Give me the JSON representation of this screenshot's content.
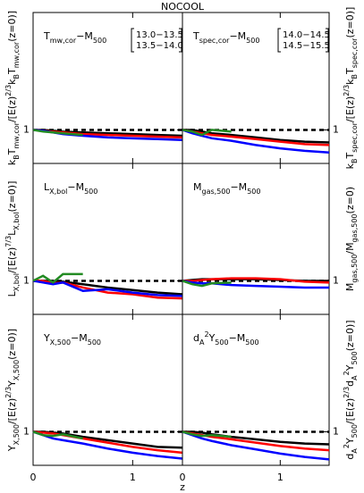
{
  "title": "NOCOOL",
  "xlabel": "z",
  "chart_data": [
    {
      "type": "line",
      "label": [
        {
          "text": "T"
        },
        {
          "text": "mw,cor",
          "shift": "sub"
        },
        {
          "text": "−M"
        },
        {
          "text": "500",
          "shift": "sub"
        }
      ],
      "ylabel": [
        {
          "text": "k"
        },
        {
          "text": "B",
          "shift": "sub"
        },
        {
          "text": "T"
        },
        {
          "text": "mw,cor",
          "shift": "sub"
        },
        {
          "text": "/[E(z)"
        },
        {
          "text": "2/3",
          "shift": "super"
        },
        {
          "text": "k"
        },
        {
          "text": "B",
          "shift": "sub"
        },
        {
          "text": "T"
        },
        {
          "text": "mw,cor",
          "shift": "sub"
        },
        {
          "text": "(z=0)]"
        }
      ],
      "x": [
        0,
        0.1,
        0.2,
        0.3,
        0.5,
        0.75,
        1,
        1.25,
        1.5
      ],
      "series": [
        {
          "name": "13.0−13.5",
          "color": "#000000",
          "values": [
            1,
            1,
            0.995,
            0.99,
            0.985,
            0.98,
            0.975,
            0.97,
            0.965
          ]
        },
        {
          "name": "13.5−14.0",
          "color": "#ff0000",
          "values": [
            1,
            0.995,
            0.99,
            0.985,
            0.975,
            0.97,
            0.965,
            0.96,
            0.955
          ]
        },
        {
          "color": "#0000ff",
          "values": [
            1,
            0.995,
            0.985,
            0.975,
            0.965,
            0.955,
            0.95,
            0.945,
            0.94
          ]
        },
        {
          "color": "#228b22",
          "values": [
            1,
            0.99,
            0.985,
            0.98,
            0.97,
            null,
            null,
            null,
            null
          ]
        }
      ],
      "xlim": [
        0,
        1.5
      ],
      "ylim": [
        0.8,
        1.7
      ],
      "xticks": [
        0,
        1
      ],
      "yticks": [
        1
      ],
      "hline": 1
    },
    {
      "type": "line",
      "label": [
        {
          "text": "T"
        },
        {
          "text": "spec,cor",
          "shift": "sub"
        },
        {
          "text": "−M"
        },
        {
          "text": "500",
          "shift": "sub"
        }
      ],
      "ylabel": [
        {
          "text": "k"
        },
        {
          "text": "B",
          "shift": "sub"
        },
        {
          "text": "T"
        },
        {
          "text": "spec,cor",
          "shift": "sub"
        },
        {
          "text": "/[E(z)"
        },
        {
          "text": "2/3",
          "shift": "super"
        },
        {
          "text": "k"
        },
        {
          "text": "B",
          "shift": "sub"
        },
        {
          "text": "T"
        },
        {
          "text": "spec,cor",
          "shift": "sub"
        },
        {
          "text": "(z=0)]"
        }
      ],
      "x": [
        0,
        0.1,
        0.2,
        0.3,
        0.5,
        0.75,
        1,
        1.25,
        1.5
      ],
      "series": [
        {
          "color": "#000000",
          "values": [
            1,
            1,
            0.99,
            0.98,
            0.97,
            0.955,
            0.94,
            0.93,
            0.925
          ]
        },
        {
          "color": "#ff0000",
          "values": [
            1,
            0.99,
            0.98,
            0.97,
            0.96,
            0.945,
            0.93,
            0.915,
            0.91
          ]
        },
        {
          "name": "14.0−14.5",
          "color": "#0000ff",
          "values": [
            1,
            0.98,
            0.965,
            0.95,
            0.935,
            0.91,
            0.89,
            0.875,
            0.865
          ]
        },
        {
          "name": "14.5−15.5",
          "color": "#228b22",
          "values": [
            1,
            0.99,
            0.97,
            1,
            0.99,
            null,
            null,
            null,
            null
          ]
        }
      ],
      "xlim": [
        0,
        1.5
      ],
      "ylim": [
        0.8,
        1.7
      ],
      "xticks": [
        0,
        1
      ],
      "yticks": [
        1
      ],
      "hline": 1
    },
    {
      "type": "line",
      "label": [
        {
          "text": "L"
        },
        {
          "text": "X,bol",
          "shift": "sub"
        },
        {
          "text": "−M"
        },
        {
          "text": "500",
          "shift": "sub"
        }
      ],
      "ylabel": [
        {
          "text": "L"
        },
        {
          "text": "X,bol",
          "shift": "sub"
        },
        {
          "text": "/[E(z)"
        },
        {
          "text": "7/3",
          "shift": "super"
        },
        {
          "text": "L"
        },
        {
          "text": "X,bol",
          "shift": "sub"
        },
        {
          "text": "(z=0)]"
        }
      ],
      "x": [
        0,
        0.1,
        0.2,
        0.3,
        0.5,
        0.75,
        1,
        1.25,
        1.5
      ],
      "series": [
        {
          "color": "#000000",
          "values": [
            1,
            1,
            1,
            0.995,
            0.98,
            0.96,
            0.945,
            0.93,
            0.92
          ]
        },
        {
          "color": "#ff0000",
          "values": [
            1,
            1,
            0.985,
            0.99,
            0.96,
            0.93,
            0.92,
            0.9,
            0.895
          ]
        },
        {
          "color": "#0000ff",
          "values": [
            1,
            0.99,
            0.98,
            0.99,
            0.94,
            0.95,
            0.93,
            0.915,
            0.91
          ]
        },
        {
          "color": "#228b22",
          "values": [
            1,
            1.03,
            0.99,
            1.04,
            1.04,
            null,
            null,
            null,
            null
          ]
        }
      ],
      "xlim": [
        0,
        1.5
      ],
      "ylim": [
        0.8,
        1.7
      ],
      "xticks": [
        0,
        1
      ],
      "yticks": [
        1
      ],
      "hline": 1
    },
    {
      "type": "line",
      "label": [
        {
          "text": "M"
        },
        {
          "text": "gas,500",
          "shift": "sub"
        },
        {
          "text": "−M"
        },
        {
          "text": "500",
          "shift": "sub"
        }
      ],
      "ylabel": [
        {
          "text": "M"
        },
        {
          "text": "gas,500",
          "shift": "sub"
        },
        {
          "text": "/M"
        },
        {
          "text": "gas,500",
          "shift": "sub"
        },
        {
          "text": "(z=0)"
        }
      ],
      "x": [
        0,
        0.1,
        0.2,
        0.3,
        0.5,
        0.75,
        1,
        1.25,
        1.5
      ],
      "series": [
        {
          "color": "#000000",
          "values": [
            1,
            1.005,
            1.01,
            1.01,
            1.01,
            1.01,
            1.005,
            1,
            1
          ]
        },
        {
          "color": "#ff0000",
          "values": [
            1,
            1,
            1.005,
            1.01,
            1.015,
            1.015,
            1.01,
            0.995,
            0.99
          ]
        },
        {
          "color": "#0000ff",
          "values": [
            1,
            0.99,
            0.985,
            0.985,
            0.975,
            0.97,
            0.965,
            0.96,
            0.96
          ]
        },
        {
          "color": "#228b22",
          "values": [
            1,
            0.98,
            0.97,
            0.985,
            0.99,
            null,
            null,
            null,
            null
          ]
        }
      ],
      "xlim": [
        0,
        1.5
      ],
      "ylim": [
        0.8,
        1.7
      ],
      "xticks": [
        0,
        1
      ],
      "yticks": [
        1
      ],
      "hline": 1
    },
    {
      "type": "line",
      "label": [
        {
          "text": "Y"
        },
        {
          "text": "X,500",
          "shift": "sub"
        },
        {
          "text": "−M"
        },
        {
          "text": "500",
          "shift": "sub"
        }
      ],
      "ylabel": [
        {
          "text": "Y"
        },
        {
          "text": "X,500",
          "shift": "sub"
        },
        {
          "text": "/[E(z)"
        },
        {
          "text": "2/3",
          "shift": "super"
        },
        {
          "text": "Y"
        },
        {
          "text": "X,500",
          "shift": "sub"
        },
        {
          "text": "(z=0)]"
        }
      ],
      "x": [
        0,
        0.1,
        0.2,
        0.3,
        0.5,
        0.75,
        1,
        1.25,
        1.5
      ],
      "series": [
        {
          "color": "#000000",
          "values": [
            1,
            1,
            0.995,
            0.99,
            0.97,
            0.95,
            0.93,
            0.91,
            0.905
          ]
        },
        {
          "color": "#ff0000",
          "values": [
            1,
            0.995,
            0.99,
            0.98,
            0.96,
            0.935,
            0.91,
            0.89,
            0.875
          ]
        },
        {
          "color": "#0000ff",
          "values": [
            1,
            0.98,
            0.96,
            0.95,
            0.93,
            0.9,
            0.875,
            0.855,
            0.84
          ]
        },
        {
          "color": "#228b22",
          "values": [
            1,
            0.98,
            0.975,
            0.985,
            0.96,
            null,
            null,
            null,
            null
          ]
        }
      ],
      "xlim": [
        0,
        1.5
      ],
      "ylim": [
        0.8,
        1.7
      ],
      "xticks": [
        0,
        1
      ],
      "yticks": [
        1
      ],
      "hline": 1
    },
    {
      "type": "line",
      "label": [
        {
          "text": "d"
        },
        {
          "text": "A",
          "shift": "sub"
        },
        {
          "text": "2",
          "shift": "super"
        },
        {
          "text": "Y"
        },
        {
          "text": "500",
          "shift": "sub"
        },
        {
          "text": "−M"
        },
        {
          "text": "500",
          "shift": "sub"
        }
      ],
      "ylabel": [
        {
          "text": "d"
        },
        {
          "text": "A",
          "shift": "sub"
        },
        {
          "text": "2",
          "shift": "super"
        },
        {
          "text": "Y"
        },
        {
          "text": "500",
          "shift": "sub"
        },
        {
          "text": "/[E(z)"
        },
        {
          "text": "2/3",
          "shift": "super"
        },
        {
          "text": "d"
        },
        {
          "text": "A",
          "shift": "sub"
        },
        {
          "text": "2",
          "shift": "super"
        },
        {
          "text": "Y"
        },
        {
          "text": "500",
          "shift": "sub"
        },
        {
          "text": "(z=0)]"
        }
      ],
      "x": [
        0,
        0.1,
        0.2,
        0.3,
        0.5,
        0.75,
        1,
        1.25,
        1.5
      ],
      "series": [
        {
          "color": "#000000",
          "values": [
            1,
            1,
            0.995,
            0.985,
            0.97,
            0.955,
            0.94,
            0.93,
            0.925
          ]
        },
        {
          "color": "#ff0000",
          "values": [
            1,
            0.99,
            0.98,
            0.97,
            0.955,
            0.935,
            0.915,
            0.9,
            0.89
          ]
        },
        {
          "color": "#0000ff",
          "values": [
            1,
            0.98,
            0.96,
            0.945,
            0.92,
            0.895,
            0.87,
            0.85,
            0.835
          ]
        },
        {
          "color": "#228b22",
          "values": [
            1,
            0.985,
            0.975,
            0.98,
            0.97,
            null,
            null,
            null,
            null
          ]
        }
      ],
      "xlim": [
        0,
        1.5
      ],
      "ylim": [
        0.8,
        1.7
      ],
      "xticks": [
        0,
        1
      ],
      "yticks": [
        1
      ],
      "hline": 1
    }
  ]
}
